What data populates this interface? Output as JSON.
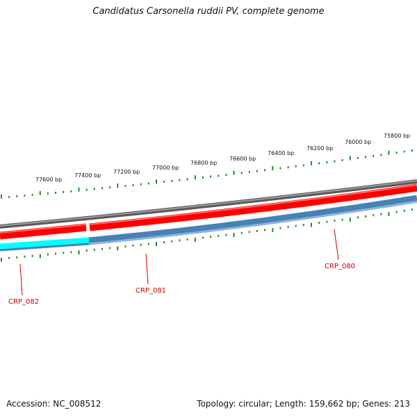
{
  "title": "Candidatus Carsonella ruddii PV, complete genome",
  "footer": {
    "accession": "Accession: NC_008512",
    "topology": "Topology: circular; Length: 159,662 bp; Genes: 213"
  },
  "scale": {
    "tick_labels": [
      "77600 bp",
      "77400 bp",
      "77200 bp",
      "77000 bp",
      "76800 bp",
      "76600 bp",
      "76400 bp",
      "76200 bp",
      "76000 bp",
      "75800 bp"
    ]
  },
  "genes": [
    {
      "name": "CRP_082"
    },
    {
      "name": "CRP_081"
    },
    {
      "name": "CRP_080"
    }
  ],
  "colors": {
    "backbone": "#808080",
    "forward_feature": "#ff0000",
    "reverse_feature": "#4682b4",
    "reverse_feature_highlight": "#00ffff",
    "tick": "#228b22",
    "gene_label": "#cc0000"
  }
}
